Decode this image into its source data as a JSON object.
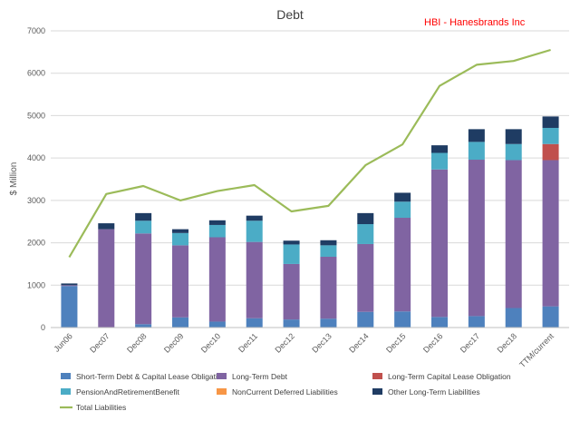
{
  "chart_data": {
    "type": "bar",
    "stacked": true,
    "title": "Debt",
    "annotation": "HBI - Hanesbrands Inc",
    "ylabel": "$ Million",
    "xlabel": "",
    "ylim": [
      0,
      7000
    ],
    "yticks": [
      0,
      1000,
      2000,
      3000,
      4000,
      5000,
      6000,
      7000
    ],
    "grid": true,
    "legend_position": "bottom",
    "categories": [
      "Jun06",
      "Dec07",
      "Dec08",
      "Dec09",
      "Dec10",
      "Dec11",
      "Dec12",
      "Dec13",
      "Dec14",
      "Dec15",
      "Dec16",
      "Dec17",
      "Dec18",
      "TTM/current"
    ],
    "series": [
      {
        "name": "Short-Term Debt & Capital Lease Obligation",
        "color": "#4e81bd",
        "kind": "bar",
        "values": [
          980,
          10,
          80,
          240,
          140,
          220,
          190,
          210,
          370,
          380,
          250,
          270,
          460,
          500
        ]
      },
      {
        "name": "Long-Term Debt",
        "color": "#8064a2",
        "kind": "bar",
        "values": [
          20,
          2310,
          2140,
          1700,
          1990,
          1800,
          1310,
          1460,
          1600,
          2210,
          3480,
          3690,
          3490,
          3450
        ]
      },
      {
        "name": "Long-Term Capital Lease Obligation",
        "color": "#c0504d",
        "kind": "bar",
        "values": [
          0,
          0,
          0,
          0,
          0,
          0,
          0,
          0,
          0,
          0,
          0,
          0,
          0,
          380
        ]
      },
      {
        "name": "PensionAndRetirementBenefit",
        "color": "#4bacc6",
        "kind": "bar",
        "values": [
          0,
          0,
          300,
          290,
          290,
          500,
          460,
          270,
          470,
          380,
          390,
          420,
          380,
          380
        ]
      },
      {
        "name": "NonCurrent Deferred Liabilities",
        "color": "#f79646",
        "kind": "bar",
        "values": [
          0,
          0,
          0,
          0,
          0,
          0,
          0,
          0,
          0,
          0,
          0,
          0,
          0,
          0
        ]
      },
      {
        "name": "Other Long-Term Liabilities",
        "color": "#1f3c63",
        "kind": "bar",
        "values": [
          40,
          140,
          180,
          90,
          110,
          120,
          90,
          120,
          260,
          210,
          180,
          300,
          350,
          270
        ]
      },
      {
        "name": "Total Liabilities",
        "color": "#9bbb59",
        "kind": "line",
        "values": [
          1660,
          3150,
          3340,
          3000,
          3220,
          3360,
          2740,
          2870,
          3830,
          4320,
          5700,
          6200,
          6290,
          6550
        ]
      }
    ]
  }
}
